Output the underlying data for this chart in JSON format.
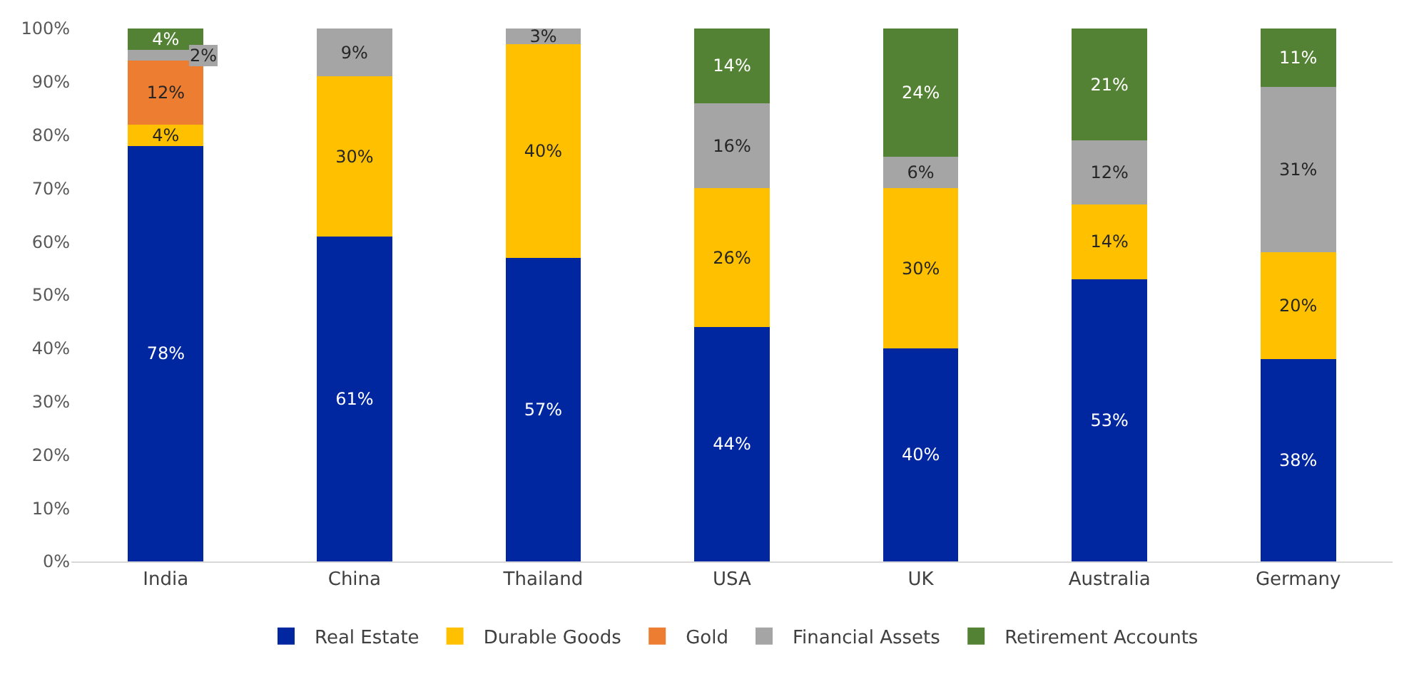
{
  "chart_data": {
    "type": "bar",
    "stacked": true,
    "categories": [
      "India",
      "China",
      "Thailand",
      "USA",
      "UK",
      "Australia",
      "Germany"
    ],
    "series": [
      {
        "name": "Real Estate",
        "color": "#0026a0",
        "values": [
          78,
          61,
          57,
          44,
          40,
          53,
          38
        ],
        "value_labels": [
          "78%",
          "61%",
          "57%",
          "44%",
          "40%",
          "53%",
          "38%"
        ]
      },
      {
        "name": "Durable Goods",
        "color": "#ffc000",
        "values": [
          4,
          30,
          40,
          26,
          30,
          14,
          20
        ],
        "value_labels": [
          "4%",
          "30%",
          "40%",
          "26%",
          "30%",
          "14%",
          "20%"
        ]
      },
      {
        "name": "Gold",
        "color": "#ed7d31",
        "values": [
          12,
          null,
          null,
          null,
          null,
          null,
          null
        ],
        "value_labels": [
          "12%",
          null,
          null,
          null,
          null,
          null,
          null
        ]
      },
      {
        "name": "Financial Assets",
        "color": "#a5a5a5",
        "values": [
          2,
          9,
          3,
          16,
          6,
          12,
          31
        ],
        "value_labels": [
          "2%",
          "9%",
          "3%",
          "16%",
          "6%",
          "12%",
          "31%"
        ]
      },
      {
        "name": "Retirement Accounts",
        "color": "#548235",
        "values": [
          4,
          null,
          null,
          14,
          24,
          21,
          11
        ],
        "value_labels": [
          "4%",
          null,
          null,
          "14%",
          "24%",
          "21%",
          "11%"
        ]
      }
    ],
    "ylim": [
      0,
      100
    ],
    "yticks": [
      {
        "value": 0,
        "label": "0%"
      },
      {
        "value": 10,
        "label": "10%"
      },
      {
        "value": 20,
        "label": "20%"
      },
      {
        "value": 30,
        "label": "30%"
      },
      {
        "value": 40,
        "label": "40%"
      },
      {
        "value": 50,
        "label": "50%"
      },
      {
        "value": 60,
        "label": "60%"
      },
      {
        "value": 70,
        "label": "70%"
      },
      {
        "value": 80,
        "label": "80%"
      },
      {
        "value": 90,
        "label": "90%"
      },
      {
        "value": 100,
        "label": "100%"
      }
    ],
    "legend": "bottom"
  }
}
